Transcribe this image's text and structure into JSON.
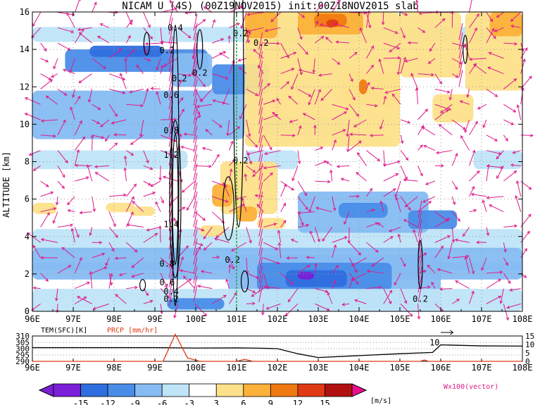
{
  "title": "NICAM U (4S) (00Z19NOV2015) init:00Z18NOV2015 slab",
  "colors": {
    "neg15": "#7a1fd6",
    "neg12": "#2f6ee0",
    "neg9": "#4a8de8",
    "neg6": "#86bcf2",
    "neg3": "#bfe4f8",
    "zero": "#ffffff",
    "pos3": "#fde08a",
    "pos6": "#fbb13a",
    "pos9": "#f07a12",
    "pos12": "#e03a14",
    "pos15": "#b01010",
    "pos15plus": "#e8108c",
    "vector": "#dd1b8a",
    "contour": "#000000",
    "marker": "#22aa22"
  },
  "chart_data": [
    {
      "type": "heatmap",
      "variable": "U",
      "x_ticks": [
        "96E",
        "97E",
        "98E",
        "99E",
        "100E",
        "101E",
        "102E",
        "103E",
        "104E",
        "105E",
        "106E",
        "107E",
        "108E"
      ],
      "xlim": [
        96,
        108
      ],
      "y_ticks": [
        "0",
        "2",
        "4",
        "6",
        "8",
        "10",
        "12",
        "14",
        "16"
      ],
      "ylim": [
        0,
        16
      ],
      "ylabel": "ALTITUDE [km]",
      "colorbar_ticks": [
        "-15",
        "-12",
        "-9",
        "-6",
        "-3",
        "3",
        "6",
        "9",
        "12",
        "15"
      ],
      "colorbar_unit": "[m/s]",
      "vector_legend": "Wx100(vector)",
      "contour_labels": [
        {
          "x": 99.3,
          "y": 13.8,
          "text": "0.2"
        },
        {
          "x": 99.5,
          "y": 15.0,
          "text": "0.4"
        },
        {
          "x": 99.6,
          "y": 12.3,
          "text": "0.2"
        },
        {
          "x": 99.4,
          "y": 11.4,
          "text": "0.6"
        },
        {
          "x": 99.4,
          "y": 9.5,
          "text": "0.8"
        },
        {
          "x": 99.4,
          "y": 8.2,
          "text": "1.2"
        },
        {
          "x": 99.4,
          "y": 4.5,
          "text": "1.4"
        },
        {
          "x": 99.3,
          "y": 2.4,
          "text": "0.8"
        },
        {
          "x": 99.3,
          "y": 1.4,
          "text": "0.6"
        },
        {
          "x": 99.4,
          "y": 0.9,
          "text": "0.4"
        },
        {
          "x": 99.4,
          "y": 0.5,
          "text": "0.2"
        },
        {
          "x": 100.1,
          "y": 12.6,
          "text": "0.2"
        },
        {
          "x": 101.1,
          "y": 14.7,
          "text": "0.2"
        },
        {
          "x": 101.6,
          "y": 14.2,
          "text": "0.2"
        },
        {
          "x": 101.1,
          "y": 7.9,
          "text": "0.2"
        },
        {
          "x": 100.9,
          "y": 2.6,
          "text": "0.2"
        },
        {
          "x": 105.5,
          "y": 0.5,
          "text": "0.2"
        }
      ],
      "marker_x": 101.0
    },
    {
      "type": "line",
      "x_ticks": [
        "96E",
        "97E",
        "98E",
        "99E",
        "100E",
        "101E",
        "102E",
        "103E",
        "104E",
        "105E",
        "106E",
        "107E",
        "108E"
      ],
      "xlim": [
        96,
        108
      ],
      "left_label": "TEM(SFC)[K]",
      "right_label": "PRCP [mm/hr]",
      "left_ticks": [
        "310",
        "305",
        "300",
        "295",
        "290"
      ],
      "right_ticks": [
        "15",
        "10",
        "5",
        "0"
      ],
      "annotation": "10",
      "series": [
        {
          "name": "TEM(SFC)[K]",
          "axis": "left",
          "x": [
            96,
            99,
            100,
            101,
            101.5,
            102,
            102.5,
            103,
            104,
            105,
            105.8,
            106,
            107,
            108
          ],
          "values": [
            300.8,
            300.8,
            300.5,
            300.6,
            300.4,
            300,
            296,
            293,
            294.5,
            296,
            297,
            303,
            302.2,
            302
          ]
        },
        {
          "name": "PRCP [mm/hr]",
          "axis": "right",
          "x": [
            96,
            99.2,
            99.5,
            99.8,
            100.1,
            101,
            101.2,
            101.4,
            102,
            105.5,
            105.6,
            105.7,
            108
          ],
          "values": [
            0,
            0,
            16,
            2,
            0,
            0,
            1.2,
            0,
            0,
            0,
            0.8,
            0,
            0
          ]
        }
      ]
    }
  ]
}
